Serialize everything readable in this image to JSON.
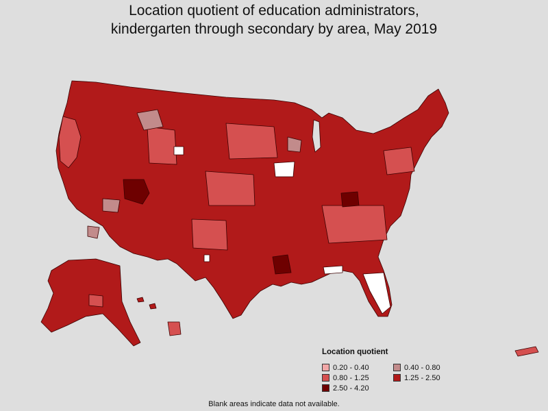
{
  "title_line1": "Location quotient of education administrators,",
  "title_line2": "kindergarten through secondary by area, May 2019",
  "legend": {
    "title": "Location quotient",
    "items": [
      {
        "label": "0.20 - 0.40",
        "color": "#f1a7a7"
      },
      {
        "label": "0.40 - 0.80",
        "color": "#c28b8b"
      },
      {
        "label": "0.80 - 1.25",
        "color": "#d55050"
      },
      {
        "label": "1.25 - 2.50",
        "color": "#b11a1a"
      },
      {
        "label": "2.50 - 4.20",
        "color": "#6e0000"
      }
    ]
  },
  "note": "Blank areas indicate data not available.",
  "colors": {
    "background": "#dedede",
    "border": "#3a0000",
    "no_data": "#ffffff"
  }
}
